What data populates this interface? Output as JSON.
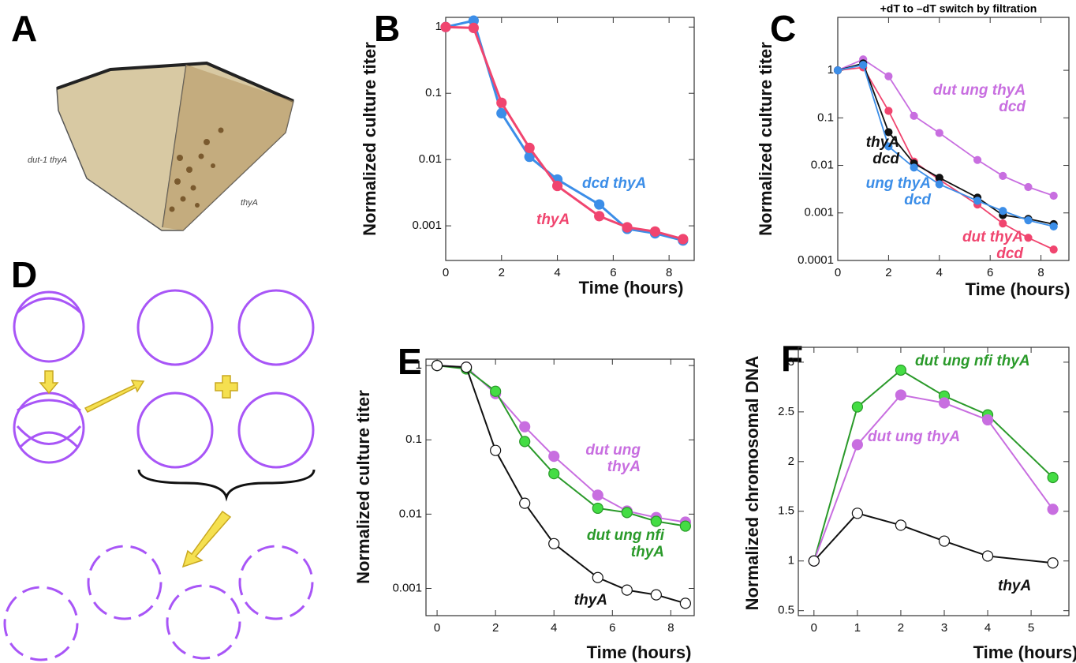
{
  "panels": {
    "labels": [
      "A",
      "B",
      "C",
      "D",
      "E",
      "F"
    ]
  },
  "photo": {
    "labels": [
      "dut-1 thyA",
      "thyA"
    ]
  },
  "chart_data": [
    {
      "type": "line",
      "x_label": "Time (hours)",
      "y_label": "Normalized culture titer",
      "y_scale": "log",
      "x": [
        0,
        1,
        2,
        3,
        4,
        5.5,
        6.5,
        7.5,
        8.5
      ],
      "series": [
        {
          "name": "dcd thyA",
          "color": "#3c8ee8",
          "values": [
            1,
            1.25,
            0.05,
            0.011,
            0.005,
            0.0021,
            0.0009,
            0.00077,
            0.0006
          ]
        },
        {
          "name": "thyA",
          "color": "#f0456f",
          "values": [
            1,
            0.97,
            0.072,
            0.015,
            0.004,
            0.0014,
            0.00095,
            0.00082,
            0.00063
          ]
        }
      ],
      "xlim": [
        0,
        8.9
      ],
      "ylim": [
        0.0003,
        1.4
      ],
      "xticks": [
        0,
        2,
        4,
        6,
        8
      ],
      "yticks": [
        0.001,
        0.01,
        0.1,
        1
      ]
    },
    {
      "type": "line",
      "title": "+dT to –dT switch by filtration",
      "x_label": "Time (hours)",
      "y_label": "Normalized culture titer",
      "y_scale": "log",
      "x": [
        0,
        1,
        2,
        3,
        4,
        5.5,
        6.5,
        7.5,
        8.5
      ],
      "series": [
        {
          "name": "dut ung thyA dcd",
          "color": "#c86ee0",
          "values": [
            1,
            1.7,
            0.75,
            0.11,
            0.048,
            0.013,
            0.006,
            0.0035,
            0.0023
          ]
        },
        {
          "name": "dut thyA dcd",
          "color": "#f0456f",
          "values": [
            1,
            1.15,
            0.14,
            0.012,
            0.005,
            0.0015,
            0.0006,
            0.0003,
            0.00017
          ]
        },
        {
          "name": "thyA dcd",
          "color": "#111111",
          "values": [
            1,
            1.4,
            0.05,
            0.011,
            0.0055,
            0.0021,
            0.0009,
            0.00075,
            0.00058
          ]
        },
        {
          "name": "ung thyA dcd",
          "color": "#3c8ee8",
          "values": [
            1,
            1.3,
            0.025,
            0.009,
            0.004,
            0.0018,
            0.0011,
            0.0007,
            0.00052
          ]
        }
      ],
      "xlim": [
        0,
        9.1
      ],
      "ylim": [
        0.0001,
        13
      ],
      "xticks": [
        0,
        2,
        4,
        6,
        8
      ],
      "yticks": [
        0.0001,
        0.001,
        0.01,
        0.1,
        1
      ]
    },
    {
      "type": "line",
      "x_label": "Time (hours)",
      "y_label": "Normalized culture titer",
      "y_scale": "log",
      "x": [
        0,
        1,
        2,
        3,
        4,
        5.5,
        6.5,
        7.5,
        8.5
      ],
      "series": [
        {
          "name": "dut ung thyA",
          "color": "#c86ee0",
          "values": [
            1,
            0.95,
            0.42,
            0.15,
            0.06,
            0.018,
            0.011,
            0.009,
            0.0078
          ]
        },
        {
          "name": "dut ung nfi thyA",
          "color": "#2a9a2a",
          "marker_fill": "#44dd44",
          "values": [
            1,
            0.9,
            0.45,
            0.095,
            0.035,
            0.012,
            0.0105,
            0.008,
            0.0069
          ]
        },
        {
          "name": "thyA",
          "color": "#111111",
          "marker_fill": "#ffffff",
          "values": [
            1,
            0.95,
            0.072,
            0.014,
            0.004,
            0.0014,
            0.00095,
            0.00082,
            0.00063
          ]
        }
      ],
      "xlim": [
        -0.38,
        8.8
      ],
      "ylim": [
        0.00043,
        1.22
      ],
      "xticks": [
        0,
        2,
        4,
        6,
        8
      ],
      "yticks": [
        0.001,
        0.01,
        0.1,
        1
      ]
    },
    {
      "type": "line",
      "x_label": "Time (hours)",
      "y_label": "Normalized chromosomal DNA",
      "y_scale": "linear",
      "x": [
        0,
        1,
        2,
        3,
        4,
        5.5
      ],
      "series": [
        {
          "name": "dut ung nfi thyA",
          "color": "#2a9a2a",
          "marker_fill": "#44dd44",
          "values": [
            1,
            2.55,
            2.92,
            2.66,
            2.47,
            1.84
          ]
        },
        {
          "name": "dut ung thyA",
          "color": "#c86ee0",
          "values": [
            1,
            2.17,
            2.67,
            2.59,
            2.42,
            1.52
          ]
        },
        {
          "name": "thyA",
          "color": "#111111",
          "marker_fill": "#ffffff",
          "values": [
            1,
            1.48,
            1.36,
            1.2,
            1.05,
            0.98
          ]
        }
      ],
      "xlim": [
        -0.36,
        5.87
      ],
      "ylim": [
        0.45,
        3.15
      ],
      "xticks": [
        0,
        1,
        2,
        3,
        4,
        5
      ],
      "yticks": [
        0.5,
        1,
        1.5,
        2,
        2.5,
        3
      ]
    }
  ]
}
